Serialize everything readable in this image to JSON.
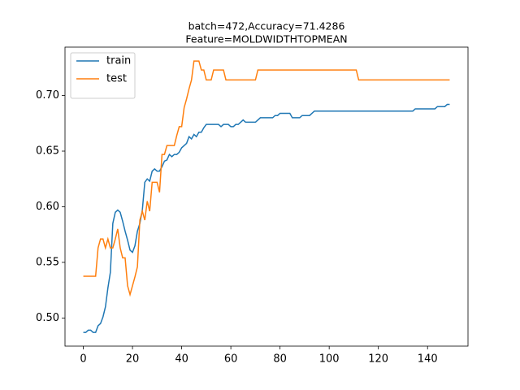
{
  "chart_data": {
    "type": "line",
    "title": [
      "batch=472,Accuracy=71.4286",
      "Feature=MOLDWIDTHTOPMEAN"
    ],
    "x": [
      0,
      1,
      2,
      3,
      4,
      5,
      6,
      7,
      8,
      9,
      10,
      11,
      12,
      13,
      14,
      15,
      16,
      17,
      18,
      19,
      20,
      21,
      22,
      23,
      24,
      25,
      26,
      27,
      28,
      29,
      30,
      31,
      32,
      33,
      34,
      35,
      36,
      37,
      38,
      39,
      40,
      41,
      42,
      43,
      44,
      45,
      46,
      47,
      48,
      49,
      50,
      51,
      52,
      53,
      54,
      55,
      56,
      57,
      58,
      59,
      60,
      61,
      62,
      63,
      64,
      65,
      66,
      67,
      68,
      69,
      70,
      71,
      72,
      73,
      74,
      75,
      76,
      77,
      78,
      79,
      80,
      81,
      82,
      83,
      84,
      85,
      86,
      87,
      88,
      89,
      90,
      91,
      92,
      93,
      94,
      95,
      96,
      97,
      98,
      99,
      100,
      101,
      102,
      103,
      104,
      105,
      106,
      107,
      108,
      109,
      110,
      111,
      112,
      113,
      114,
      115,
      116,
      117,
      118,
      119,
      120,
      121,
      122,
      123,
      124,
      125,
      126,
      127,
      128,
      129,
      130,
      131,
      132,
      133,
      134,
      135,
      136,
      137,
      138,
      139,
      140,
      141,
      142,
      143,
      144,
      145,
      146,
      147,
      148,
      149
    ],
    "series": [
      {
        "name": "train",
        "color": "#1f77b4",
        "values": [
          0.487,
          0.487,
          0.489,
          0.489,
          0.487,
          0.487,
          0.493,
          0.495,
          0.501,
          0.51,
          0.527,
          0.541,
          0.585,
          0.595,
          0.597,
          0.595,
          0.587,
          0.578,
          0.57,
          0.561,
          0.559,
          0.565,
          0.578,
          0.585,
          0.597,
          0.622,
          0.625,
          0.623,
          0.632,
          0.634,
          0.632,
          0.632,
          0.636,
          0.641,
          0.642,
          0.647,
          0.645,
          0.647,
          0.647,
          0.649,
          0.653,
          0.655,
          0.657,
          0.663,
          0.661,
          0.665,
          0.663,
          0.667,
          0.667,
          0.671,
          0.674,
          0.674,
          0.674,
          0.674,
          0.674,
          0.674,
          0.672,
          0.674,
          0.674,
          0.674,
          0.672,
          0.672,
          0.674,
          0.674,
          0.676,
          0.678,
          0.676,
          0.676,
          0.676,
          0.676,
          0.676,
          0.678,
          0.68,
          0.68,
          0.68,
          0.68,
          0.68,
          0.68,
          0.682,
          0.682,
          0.684,
          0.684,
          0.684,
          0.684,
          0.684,
          0.68,
          0.68,
          0.68,
          0.68,
          0.682,
          0.682,
          0.682,
          0.682,
          0.684,
          0.686,
          0.686,
          0.686,
          0.686,
          0.686,
          0.686,
          0.686,
          0.686,
          0.686,
          0.686,
          0.686,
          0.686,
          0.686,
          0.686,
          0.686,
          0.686,
          0.686,
          0.686,
          0.686,
          0.686,
          0.686,
          0.686,
          0.686,
          0.686,
          0.686,
          0.686,
          0.686,
          0.686,
          0.686,
          0.686,
          0.686,
          0.686,
          0.686,
          0.686,
          0.686,
          0.686,
          0.686,
          0.686,
          0.686,
          0.686,
          0.686,
          0.688,
          0.688,
          0.688,
          0.688,
          0.688,
          0.688,
          0.688,
          0.688,
          0.688,
          0.69,
          0.69,
          0.69,
          0.69,
          0.692,
          0.692
        ]
      },
      {
        "name": "test",
        "color": "#ff7f0e",
        "values": [
          0.5375,
          0.5375,
          0.5375,
          0.5375,
          0.5375,
          0.5375,
          0.563,
          0.571,
          0.571,
          0.563,
          0.571,
          0.563,
          0.563,
          0.571,
          0.58,
          0.563,
          0.554,
          0.554,
          0.529,
          0.521,
          0.529,
          0.537,
          0.546,
          0.588,
          0.596,
          0.588,
          0.605,
          0.596,
          0.622,
          0.622,
          0.622,
          0.613,
          0.647,
          0.647,
          0.655,
          0.655,
          0.655,
          0.655,
          0.664,
          0.672,
          0.672,
          0.689,
          0.697,
          0.706,
          0.714,
          0.731,
          0.731,
          0.731,
          0.723,
          0.723,
          0.714,
          0.714,
          0.714,
          0.723,
          0.723,
          0.723,
          0.723,
          0.723,
          0.714,
          0.714,
          0.714,
          0.714,
          0.714,
          0.714,
          0.714,
          0.714,
          0.714,
          0.714,
          0.714,
          0.714,
          0.714,
          0.723,
          0.723,
          0.723,
          0.723,
          0.723,
          0.723,
          0.723,
          0.723,
          0.723,
          0.723,
          0.723,
          0.723,
          0.723,
          0.723,
          0.723,
          0.723,
          0.723,
          0.723,
          0.723,
          0.723,
          0.723,
          0.723,
          0.723,
          0.723,
          0.723,
          0.723,
          0.723,
          0.723,
          0.723,
          0.723,
          0.723,
          0.723,
          0.723,
          0.723,
          0.723,
          0.723,
          0.723,
          0.723,
          0.723,
          0.723,
          0.723,
          0.714,
          0.714,
          0.714,
          0.714,
          0.714,
          0.714,
          0.714,
          0.714,
          0.714,
          0.714,
          0.714,
          0.714,
          0.714,
          0.714,
          0.714,
          0.714,
          0.714,
          0.714,
          0.714,
          0.714,
          0.714,
          0.714,
          0.714,
          0.714,
          0.714,
          0.714,
          0.714,
          0.714,
          0.714,
          0.714,
          0.714,
          0.714,
          0.714,
          0.714,
          0.714,
          0.714,
          0.714,
          0.714
        ]
      }
    ],
    "xlim": [
      -7.45,
      156.45
    ],
    "xticks": [
      0,
      20,
      40,
      60,
      80,
      100,
      120,
      140
    ],
    "ylim": [
      0.4747,
      0.7435
    ],
    "yticks": [
      {
        "value": 0.5,
        "label": "0.50"
      },
      0.55,
      {
        "value": 0.6,
        "label": "0.60"
      },
      0.65,
      {
        "value": 0.7,
        "label": "0.70"
      }
    ],
    "grid": false,
    "legend": "upper-left"
  }
}
